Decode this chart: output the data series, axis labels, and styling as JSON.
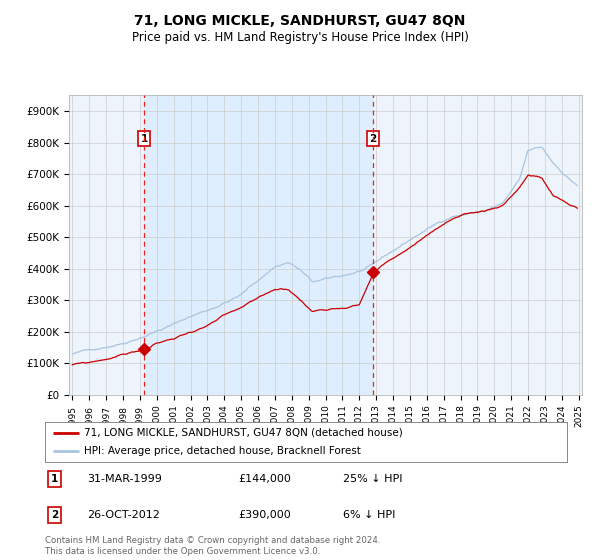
{
  "title": "71, LONG MICKLE, SANDHURST, GU47 8QN",
  "subtitle": "Price paid vs. HM Land Registry's House Price Index (HPI)",
  "legend_line1": "71, LONG MICKLE, SANDHURST, GU47 8QN (detached house)",
  "legend_line2": "HPI: Average price, detached house, Bracknell Forest",
  "table_rows": [
    {
      "num": "1",
      "date": "31-MAR-1999",
      "price": "£144,000",
      "hpi": "25% ↓ HPI"
    },
    {
      "num": "2",
      "date": "26-OCT-2012",
      "price": "£390,000",
      "hpi": "6% ↓ HPI"
    }
  ],
  "footer": "Contains HM Land Registry data © Crown copyright and database right 2024.\nThis data is licensed under the Open Government Licence v3.0.",
  "y_ticks": [
    0,
    100000,
    200000,
    300000,
    400000,
    500000,
    600000,
    700000,
    800000,
    900000
  ],
  "y_tick_labels": [
    "£0",
    "£100K",
    "£200K",
    "£300K",
    "£400K",
    "£500K",
    "£600K",
    "£700K",
    "£800K",
    "£900K"
  ],
  "ylim": [
    0,
    950000
  ],
  "x_start_year": 1995,
  "x_end_year": 2025,
  "sale1_date_num": 1999.25,
  "sale1_price": 144000,
  "sale2_date_num": 2012.82,
  "sale2_price": 390000,
  "hpi_color": "#a8c4e0",
  "price_color": "#cc0000",
  "dot_color": "#cc0000",
  "vline_color": "#ee2222",
  "shade_color": "#ddeeff",
  "grid_color": "#cccccc",
  "bg_color": "#eef4fb",
  "label_box_color": "#cc0000",
  "hpi_bp_x": [
    1995.0,
    1996.0,
    1997.0,
    1998.0,
    1999.0,
    2000.0,
    2001.0,
    2002.0,
    2003.0,
    2004.0,
    2005.0,
    2006.0,
    2007.0,
    2007.8,
    2008.5,
    2009.2,
    2010.0,
    2011.0,
    2012.0,
    2012.82,
    2013.5,
    2014.5,
    2015.5,
    2016.5,
    2017.5,
    2018.5,
    2019.5,
    2020.5,
    2021.5,
    2022.0,
    2022.8,
    2023.5,
    2024.5,
    2025.0
  ],
  "hpi_bp_y": [
    130000,
    140000,
    155000,
    170000,
    192000,
    215000,
    235000,
    260000,
    280000,
    305000,
    330000,
    375000,
    420000,
    435000,
    410000,
    370000,
    375000,
    385000,
    400000,
    415000,
    440000,
    475000,
    510000,
    540000,
    570000,
    580000,
    590000,
    610000,
    680000,
    770000,
    780000,
    730000,
    680000,
    660000
  ],
  "price_bp_x": [
    1995.0,
    1996.0,
    1997.0,
    1998.0,
    1999.25,
    2000.0,
    2001.0,
    2002.0,
    2003.0,
    2004.0,
    2005.0,
    2006.0,
    2007.0,
    2007.8,
    2008.5,
    2009.2,
    2010.0,
    2011.0,
    2012.0,
    2012.82,
    2013.5,
    2014.5,
    2015.5,
    2016.5,
    2017.5,
    2018.5,
    2019.5,
    2020.5,
    2021.5,
    2022.0,
    2022.8,
    2023.5,
    2024.5,
    2025.0
  ],
  "price_bp_y": [
    95000,
    100000,
    112000,
    128000,
    144000,
    162000,
    178000,
    200000,
    220000,
    248000,
    268000,
    295000,
    325000,
    328000,
    295000,
    258000,
    268000,
    278000,
    290000,
    390000,
    420000,
    450000,
    490000,
    530000,
    560000,
    570000,
    580000,
    600000,
    660000,
    700000,
    690000,
    630000,
    600000,
    590000
  ]
}
